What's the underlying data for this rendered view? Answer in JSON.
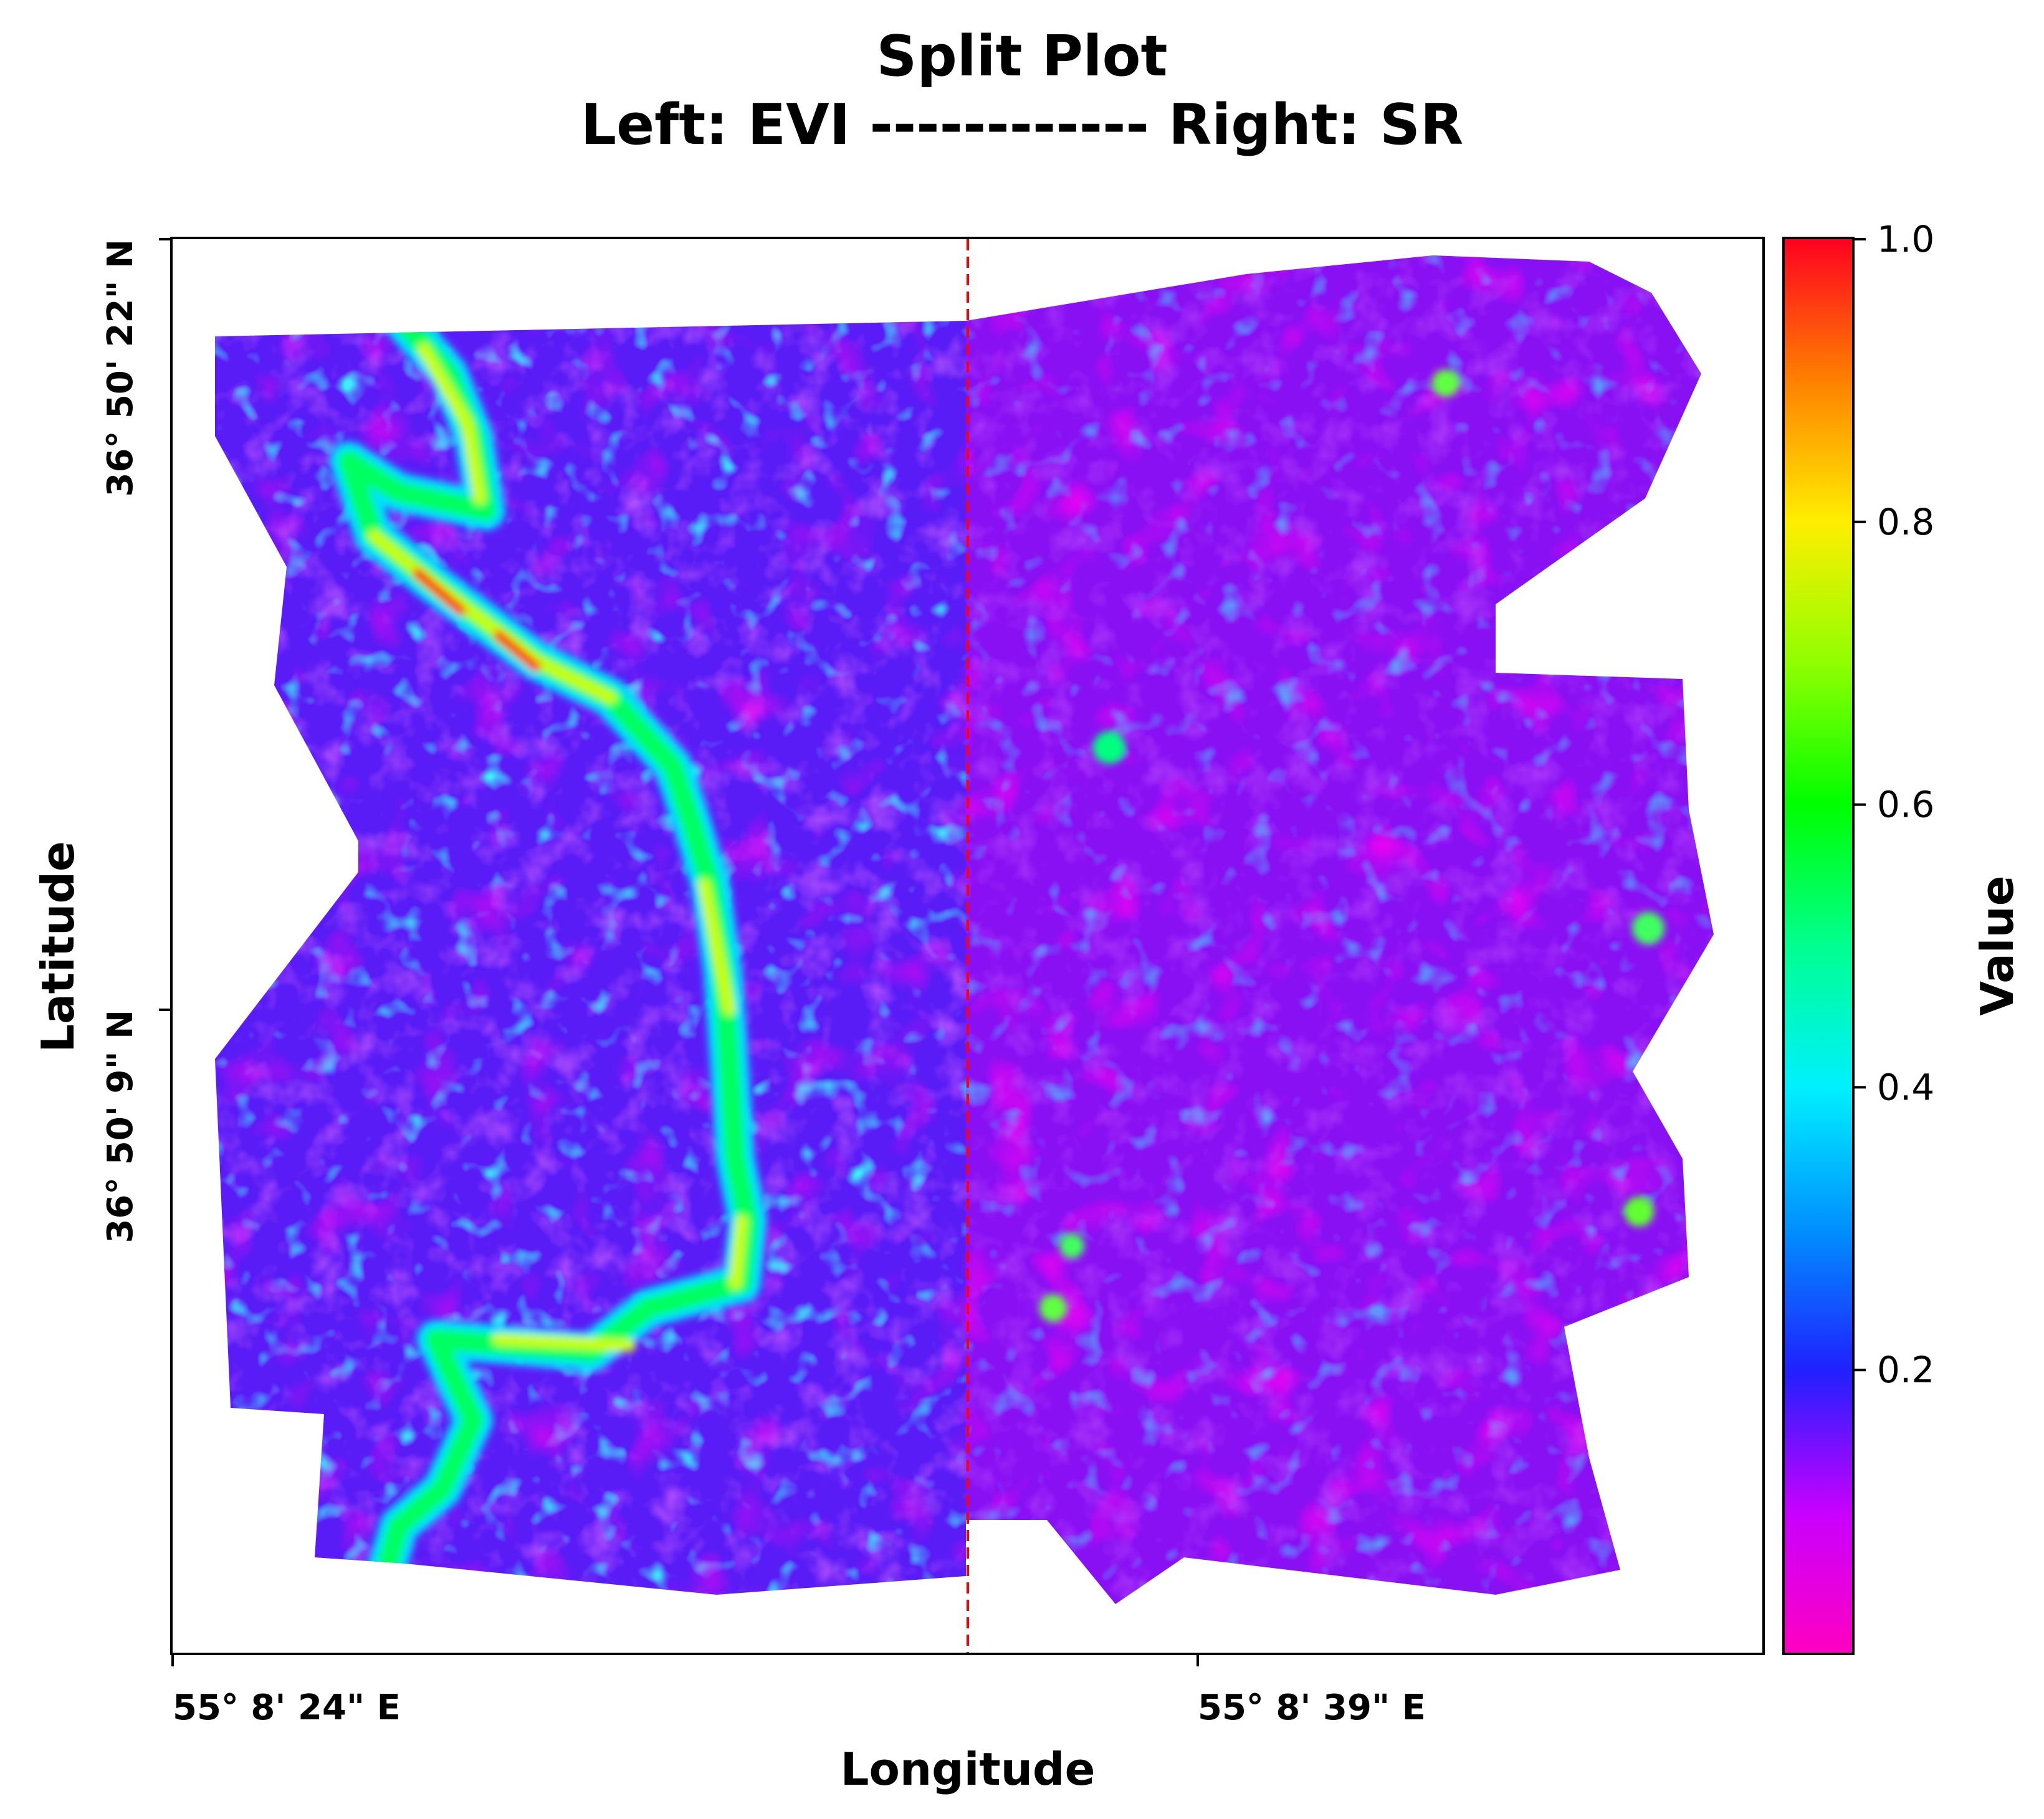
{
  "chart_data": {
    "type": "heatmap",
    "title_lines": [
      "Split Plot",
      "Left: EVI ------------ Right: SR"
    ],
    "xlabel": "Longitude",
    "ylabel": "Latitude",
    "x_ticks": [
      "55° 8' 24\" E",
      "55° 8' 39\" E"
    ],
    "y_ticks": [
      "36° 50' 22\" N",
      "36° 50' 9\" N"
    ],
    "split_label_left": "EVI",
    "split_label_right": "SR",
    "colorbar": {
      "label": "Value",
      "colormap": "gist_rainbow_r",
      "range": [
        0.0,
        1.0
      ],
      "ticks": [
        0.2,
        0.4,
        0.6,
        0.8,
        1.0
      ],
      "tick_labels": [
        "0.2",
        "0.4",
        "0.6",
        "0.8",
        "1.0"
      ]
    },
    "value_summary": {
      "background_typical": 0.15,
      "left_stream_peak": 0.95,
      "right_typical": 0.1
    },
    "colors": {
      "split_line": "#ff0000",
      "frame": "#000000"
    }
  }
}
